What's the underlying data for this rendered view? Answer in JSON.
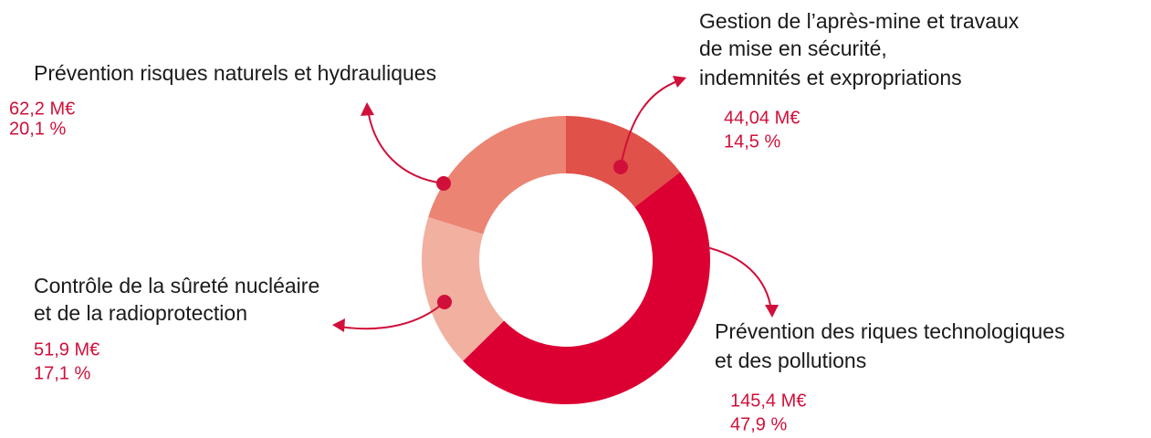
{
  "chart_data": {
    "type": "donut",
    "categories": [
      [
        "Gestion de l’après-mine et travaux",
        "de mise en sécurité,",
        "indemnités et expropriations"
      ],
      [
        "Prévention des riques technologiques",
        "et des pollutions"
      ],
      [
        "Contrôle de la sûreté nucléaire",
        "et de la radioprotection"
      ],
      [
        "Prévention risques naturels et hydrauliques"
      ]
    ],
    "values": [
      14.5,
      47.9,
      17.1,
      20.1
    ],
    "value_labels": [
      "14,5 %",
      "47,9 %",
      "17,1 %",
      "20,1 %"
    ],
    "amounts": [
      44.04,
      145.4,
      51.9,
      62.2
    ],
    "amount_labels": [
      "44,04 M€",
      "145,4 M€",
      "51,9 M€",
      "62,2 M€"
    ],
    "colors": [
      "#e0514a",
      "#dc0032",
      "#f2b0a0",
      "#ec8473"
    ]
  }
}
